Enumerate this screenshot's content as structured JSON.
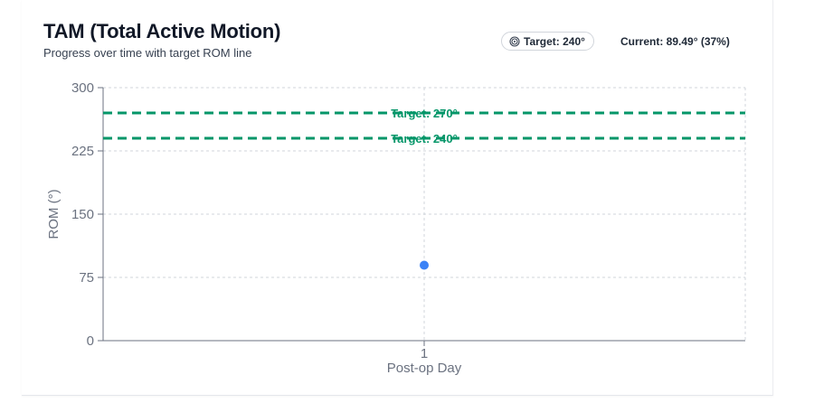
{
  "header": {
    "title": "TAM (Total Active Motion)",
    "subtitle": "Progress over time with target ROM line",
    "target_badge": "Target: 240°",
    "target_icon": "target-icon",
    "current_readout": "Current: 89.49° (37%)"
  },
  "colors": {
    "point": "#3b82f6",
    "reference": "#059669",
    "grid": "#d1d5db",
    "axis": "#9ca3af"
  },
  "chart_data": {
    "type": "scatter",
    "title": "TAM (Total Active Motion)",
    "subtitle": "Progress over time with target ROM line",
    "xlabel": "Post-op Day",
    "ylabel": "ROM (°)",
    "x_ticks": [
      "1"
    ],
    "y_ticks": [
      0,
      75,
      150,
      225,
      300
    ],
    "ylim": [
      0,
      300
    ],
    "grid": true,
    "series": [
      {
        "points": [
          {
            "x": 1,
            "y": 89.49
          }
        ]
      }
    ],
    "reference_lines": [
      {
        "y": 270,
        "label": "Target: 270°",
        "style": "dashed"
      },
      {
        "y": 240,
        "label": "Target: 240°",
        "style": "dashed"
      }
    ]
  }
}
